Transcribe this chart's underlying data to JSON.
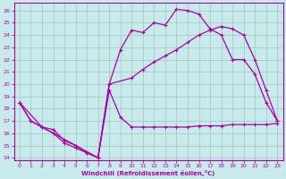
{
  "xlabel": "Windchill (Refroidissement éolien,°C)",
  "background_color": "#c8eaea",
  "grid_color": "#a0c4c4",
  "line_color": "#aa00aa",
  "xlim": [
    -0.5,
    23.5
  ],
  "ylim": [
    13.8,
    26.6
  ],
  "xticks": [
    0,
    1,
    2,
    3,
    4,
    5,
    6,
    7,
    8,
    9,
    10,
    11,
    12,
    13,
    14,
    15,
    16,
    17,
    18,
    19,
    20,
    21,
    22,
    23
  ],
  "yticks": [
    14,
    15,
    16,
    17,
    18,
    19,
    20,
    21,
    22,
    23,
    24,
    25,
    26
  ],
  "line1_x": [
    0,
    1,
    2,
    3,
    4,
    5,
    6,
    7,
    8,
    9,
    10,
    11,
    12,
    13,
    14,
    15,
    16,
    17,
    18,
    19,
    20,
    21,
    22,
    23
  ],
  "line1_y": [
    18.5,
    17.0,
    16.5,
    16.3,
    15.4,
    15.0,
    14.4,
    14.0,
    19.5,
    17.3,
    16.5,
    16.5,
    16.5,
    16.5,
    16.5,
    16.5,
    16.6,
    16.6,
    16.6,
    16.7,
    16.7,
    16.7,
    16.7,
    16.8
  ],
  "line2_x": [
    0,
    1,
    2,
    3,
    4,
    5,
    6,
    7,
    8,
    9,
    10,
    11,
    12,
    13,
    14,
    15,
    16,
    17,
    18,
    19,
    20,
    21,
    22,
    23
  ],
  "line2_y": [
    18.5,
    17.0,
    16.5,
    16.0,
    15.2,
    14.8,
    14.4,
    14.0,
    20.0,
    22.8,
    24.4,
    24.2,
    25.0,
    24.8,
    26.1,
    26.0,
    25.7,
    24.5,
    24.0,
    22.0,
    22.0,
    20.8,
    18.5,
    17.0
  ],
  "line3_x": [
    0,
    2,
    7,
    8,
    10,
    11,
    12,
    13,
    14,
    15,
    16,
    17,
    18,
    19,
    20,
    21,
    22,
    23
  ],
  "line3_y": [
    18.5,
    16.5,
    14.0,
    20.0,
    20.5,
    21.2,
    21.8,
    22.3,
    22.8,
    23.4,
    24.0,
    24.4,
    24.7,
    24.5,
    24.0,
    22.0,
    19.5,
    17.0
  ]
}
